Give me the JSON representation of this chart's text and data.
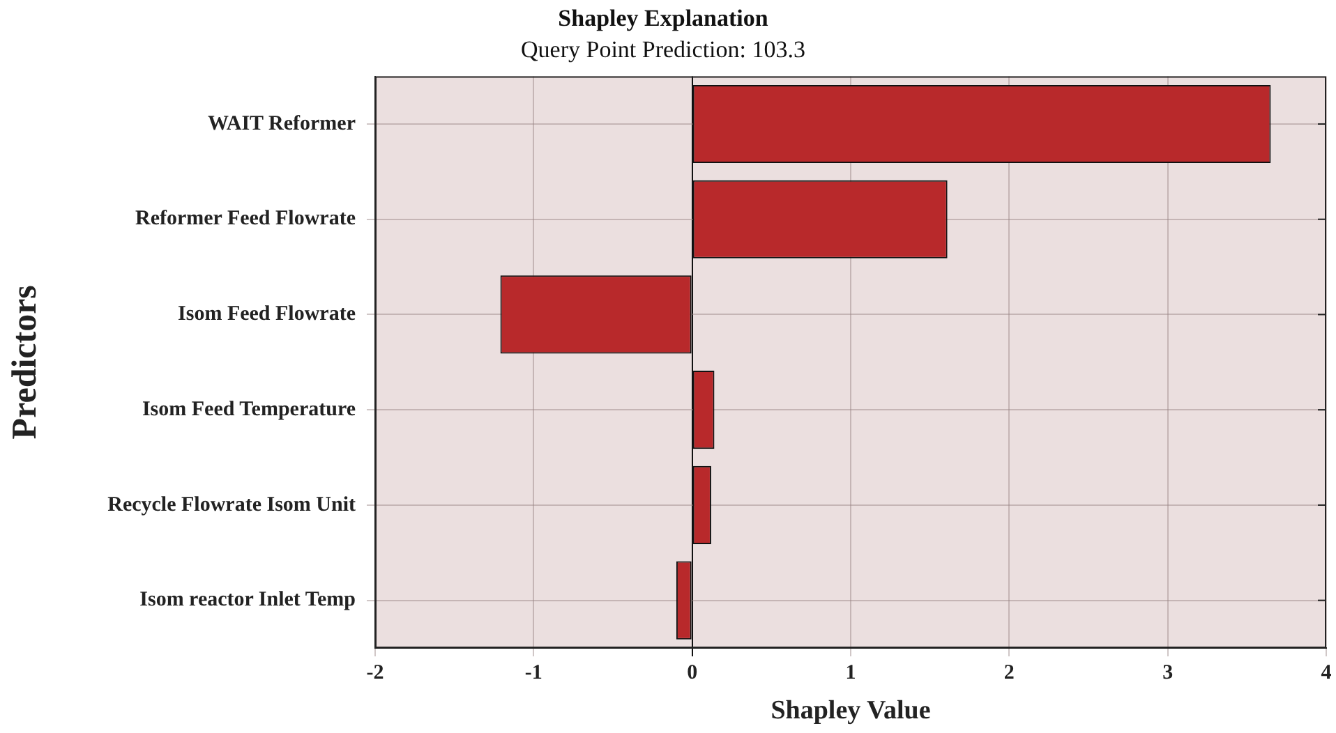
{
  "chart_data": {
    "type": "bar",
    "orientation": "horizontal",
    "title": "Shapley Explanation",
    "subtitle": "Query Point Prediction: 103.3",
    "xlabel": "Shapley Value",
    "ylabel": "Predictors",
    "categories": [
      "WAIT Reformer",
      "Reformer Feed Flowrate",
      "Isom Feed Flowrate",
      "Isom Feed Temperature",
      "Recycle Flowrate Isom Unit",
      "Isom reactor Inlet Temp"
    ],
    "values": [
      3.65,
      1.61,
      -1.21,
      0.14,
      0.12,
      -0.1
    ],
    "color": "#b8292b",
    "xlim": [
      -2,
      4
    ],
    "xticks": [
      -2,
      -1,
      0,
      1,
      2,
      3,
      4
    ],
    "grid": true,
    "legend": false
  }
}
